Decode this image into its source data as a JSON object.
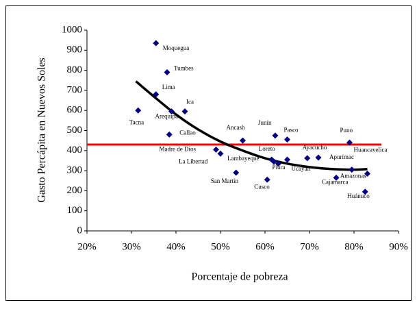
{
  "chart_data": {
    "type": "scatter",
    "x_label": "Porcentaje de pobreza",
    "y_label": "Gasto Percápita en Nuevos Soles",
    "point_labels": [
      "Moquegua",
      "Tumbes",
      "Lima",
      "Tacna",
      "Arequipa",
      "Ica",
      "Callao",
      "Ancash",
      "Junín",
      "Pasco",
      "Puno",
      "Madre de Dios",
      "La Libertad",
      "Lambayeque",
      "Piura",
      "Loreto",
      "Ucayali",
      "Ayacucho",
      "Apurímac",
      "Huancavelica",
      "Amazonas",
      "Cajamarca",
      "Huánuco",
      "San Martín",
      "Cusco"
    ],
    "x": [
      35.5,
      38,
      35.5,
      31.5,
      39,
      42,
      38.5,
      55,
      62.3,
      65,
      79,
      49,
      50,
      62,
      63,
      61.5,
      65,
      69.5,
      72,
      83,
      79.5,
      76,
      82.5,
      53.5,
      60.5
    ],
    "values": [
      935,
      790,
      680,
      600,
      595,
      595,
      480,
      450,
      475,
      455,
      440,
      405,
      385,
      345,
      335,
      355,
      355,
      362,
      365,
      285,
      305,
      265,
      195,
      290,
      255
    ],
    "color": "#000080",
    "trend": {
      "x": [
        31,
        35,
        40,
        45,
        50,
        55,
        60,
        65,
        70,
        75,
        80,
        83
      ],
      "values": [
        745,
        670,
        580,
        505,
        445,
        400,
        362,
        335,
        318,
        308,
        305,
        308
      ],
      "color": "#000000"
    },
    "reference_line": {
      "value": 430,
      "color": "#ff0000"
    },
    "xlim": [
      20,
      90
    ],
    "xticks": [
      {
        "value": 20,
        "label": "20%"
      },
      {
        "value": 30,
        "label": "30%"
      },
      {
        "value": 40,
        "label": "40%"
      },
      {
        "value": 50,
        "label": "50%"
      },
      {
        "value": 60,
        "label": "60%"
      },
      {
        "value": 70,
        "label": "70%"
      },
      {
        "value": 80,
        "label": "80%"
      },
      {
        "value": 90,
        "label": "90%"
      }
    ],
    "ylim": [
      0,
      1000
    ],
    "yticks": [
      0,
      100,
      200,
      300,
      400,
      500,
      600,
      700,
      800,
      900,
      1000
    ]
  }
}
